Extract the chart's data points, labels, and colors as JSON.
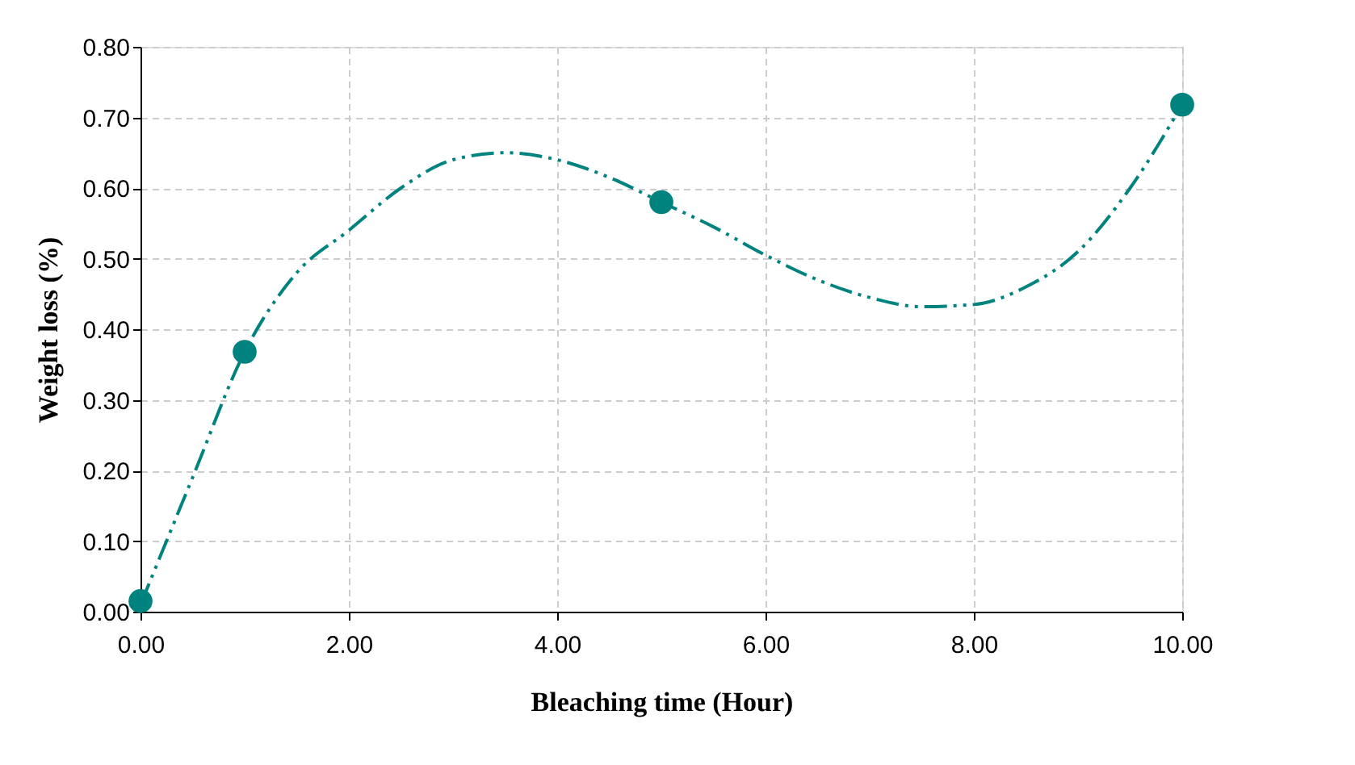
{
  "chart_data": {
    "type": "scatter",
    "xlabel": "Bleaching time (Hour)",
    "ylabel": "Weight loss (%)",
    "xlim": [
      0,
      10
    ],
    "ylim": [
      0,
      0.8
    ],
    "xticks": [
      {
        "value": 0,
        "label": "0.00"
      },
      {
        "value": 2,
        "label": "2.00"
      },
      {
        "value": 4,
        "label": "4.00"
      },
      {
        "value": 6,
        "label": "6.00"
      },
      {
        "value": 8,
        "label": "8.00"
      },
      {
        "value": 10,
        "label": "10.00"
      }
    ],
    "yticks": [
      {
        "value": 0,
        "label": "0.00"
      },
      {
        "value": 0.1,
        "label": "0.10"
      },
      {
        "value": 0.2,
        "label": "0.20"
      },
      {
        "value": 0.3,
        "label": "0.30"
      },
      {
        "value": 0.4,
        "label": "0.40"
      },
      {
        "value": 0.5,
        "label": "0.50"
      },
      {
        "value": 0.6,
        "label": "0.60"
      },
      {
        "value": 0.7,
        "label": "0.70"
      },
      {
        "value": 0.8,
        "label": "0.80"
      }
    ],
    "grid": true,
    "series": [
      {
        "color": "#00827f",
        "marker": "circle",
        "x": [
          0,
          1,
          5,
          10
        ],
        "values": [
          0.015,
          0.368,
          0.58,
          0.718
        ]
      },
      {
        "type": "line",
        "color": "#00827f",
        "line_style": "dashed",
        "marker": "none",
        "x": [
          0,
          0.5,
          1,
          1.5,
          2,
          2.5,
          3,
          3.5,
          4,
          4.5,
          5,
          5.5,
          6,
          6.5,
          7,
          7.5,
          8,
          8.5,
          9,
          9.5,
          10
        ],
        "values": [
          0.01,
          0.19,
          0.368,
          0.48,
          0.54,
          0.6,
          0.64,
          0.65,
          0.64,
          0.615,
          0.58,
          0.545,
          0.505,
          0.47,
          0.445,
          0.432,
          0.435,
          0.46,
          0.51,
          0.6,
          0.718
        ]
      }
    ]
  }
}
